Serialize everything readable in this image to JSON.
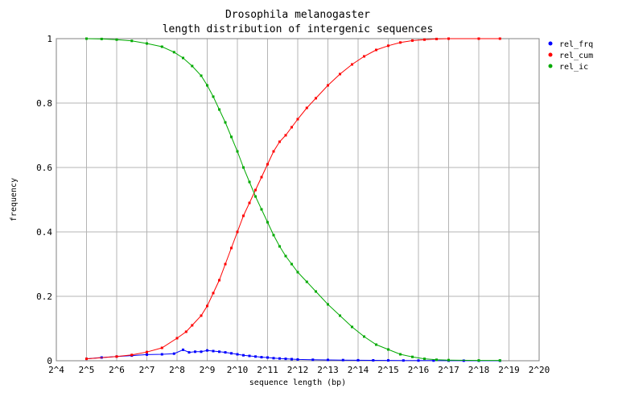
{
  "chart_data": {
    "type": "line",
    "title": [
      "Drosophila melanogaster",
      "length distribution of intergenic sequences"
    ],
    "xlabel": "sequence length (bp)",
    "ylabel": "frequency",
    "x_scale": "log2",
    "xlim": [
      4,
      20
    ],
    "ylim": [
      0,
      1
    ],
    "x_tick_labels": [
      "2^4",
      "2^5",
      "2^6",
      "2^7",
      "2^8",
      "2^9",
      "2^10",
      "2^11",
      "2^12",
      "2^13",
      "2^14",
      "2^15",
      "2^16",
      "2^17",
      "2^18",
      "2^19",
      "2^20"
    ],
    "y_tick_labels": [
      "0",
      "0.2",
      "0.4",
      "0.6",
      "0.8",
      "1"
    ],
    "grid": true,
    "legend_position": "top-right",
    "series": [
      {
        "name": "rel_frq",
        "color": "#0000ff",
        "x": [
          5.0,
          5.5,
          6.0,
          6.5,
          7.0,
          7.5,
          7.9,
          8.2,
          8.4,
          8.6,
          8.8,
          9.0,
          9.2,
          9.4,
          9.6,
          9.8,
          10.0,
          10.2,
          10.4,
          10.6,
          10.8,
          11.0,
          11.2,
          11.4,
          11.6,
          11.8,
          12.0,
          12.5,
          13.0,
          13.5,
          14.0,
          14.5,
          15.0,
          15.5,
          16.0,
          16.5,
          17.0,
          17.5,
          18.0,
          18.7
        ],
        "y": [
          0.006,
          0.01,
          0.013,
          0.016,
          0.019,
          0.02,
          0.022,
          0.034,
          0.026,
          0.028,
          0.028,
          0.032,
          0.03,
          0.028,
          0.026,
          0.023,
          0.02,
          0.017,
          0.015,
          0.013,
          0.011,
          0.01,
          0.008,
          0.007,
          0.006,
          0.005,
          0.004,
          0.003,
          0.0025,
          0.002,
          0.0016,
          0.0013,
          0.001,
          0.0008,
          0.0006,
          0.0004,
          0.0003,
          0.0002,
          0.0001,
          0.0001
        ]
      },
      {
        "name": "rel_cum",
        "color": "#ff0000",
        "x": [
          5.0,
          6.0,
          6.5,
          7.0,
          7.5,
          8.0,
          8.3,
          8.5,
          8.8,
          9.0,
          9.2,
          9.4,
          9.6,
          9.8,
          10.0,
          10.2,
          10.4,
          10.6,
          10.8,
          11.0,
          11.2,
          11.4,
          11.6,
          11.8,
          12.0,
          12.3,
          12.6,
          13.0,
          13.4,
          13.8,
          14.2,
          14.6,
          15.0,
          15.4,
          15.8,
          16.2,
          16.6,
          17.0,
          18.0,
          18.7
        ],
        "y": [
          0.006,
          0.013,
          0.018,
          0.027,
          0.04,
          0.07,
          0.09,
          0.11,
          0.14,
          0.17,
          0.21,
          0.25,
          0.3,
          0.35,
          0.4,
          0.45,
          0.49,
          0.53,
          0.57,
          0.61,
          0.65,
          0.68,
          0.7,
          0.725,
          0.75,
          0.785,
          0.815,
          0.855,
          0.89,
          0.92,
          0.945,
          0.965,
          0.978,
          0.988,
          0.994,
          0.997,
          0.999,
          1.0,
          1.0,
          1.0
        ]
      },
      {
        "name": "rel_ic",
        "color": "#00aa00",
        "x": [
          5.0,
          5.5,
          6.0,
          6.5,
          7.0,
          7.5,
          7.9,
          8.2,
          8.5,
          8.8,
          9.0,
          9.2,
          9.4,
          9.6,
          9.8,
          10.0,
          10.2,
          10.4,
          10.6,
          10.8,
          11.0,
          11.2,
          11.4,
          11.6,
          11.8,
          12.0,
          12.3,
          12.6,
          13.0,
          13.4,
          13.8,
          14.2,
          14.6,
          15.0,
          15.4,
          15.8,
          16.2,
          16.6,
          17.0,
          18.0,
          18.7
        ],
        "y": [
          1.0,
          0.999,
          0.997,
          0.993,
          0.985,
          0.975,
          0.958,
          0.94,
          0.915,
          0.885,
          0.855,
          0.82,
          0.78,
          0.74,
          0.695,
          0.65,
          0.6,
          0.555,
          0.51,
          0.47,
          0.43,
          0.39,
          0.355,
          0.325,
          0.3,
          0.275,
          0.245,
          0.215,
          0.175,
          0.14,
          0.105,
          0.075,
          0.05,
          0.035,
          0.02,
          0.012,
          0.006,
          0.003,
          0.002,
          0.001,
          0.001
        ]
      }
    ]
  }
}
